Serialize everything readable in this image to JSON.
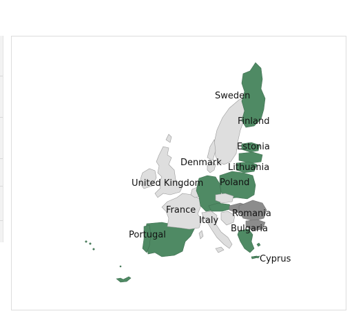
{
  "map": {
    "colors": {
      "highlight": "#4f8a64",
      "neutral": "#dedede",
      "dark": "#8c8c8c"
    },
    "labels": {
      "sweden": "Sweden",
      "finland": "Finland",
      "estonia": "Estonia",
      "denmark": "Denmark",
      "lithuania": "Lithuania",
      "united_kingdom": "United Kingdom",
      "poland": "Poland",
      "france": "France",
      "romania": "Romania",
      "italy": "Italy",
      "bulgaria": "Bulgaria",
      "portugal": "Portugal",
      "cyprus": "Cyprus"
    }
  }
}
